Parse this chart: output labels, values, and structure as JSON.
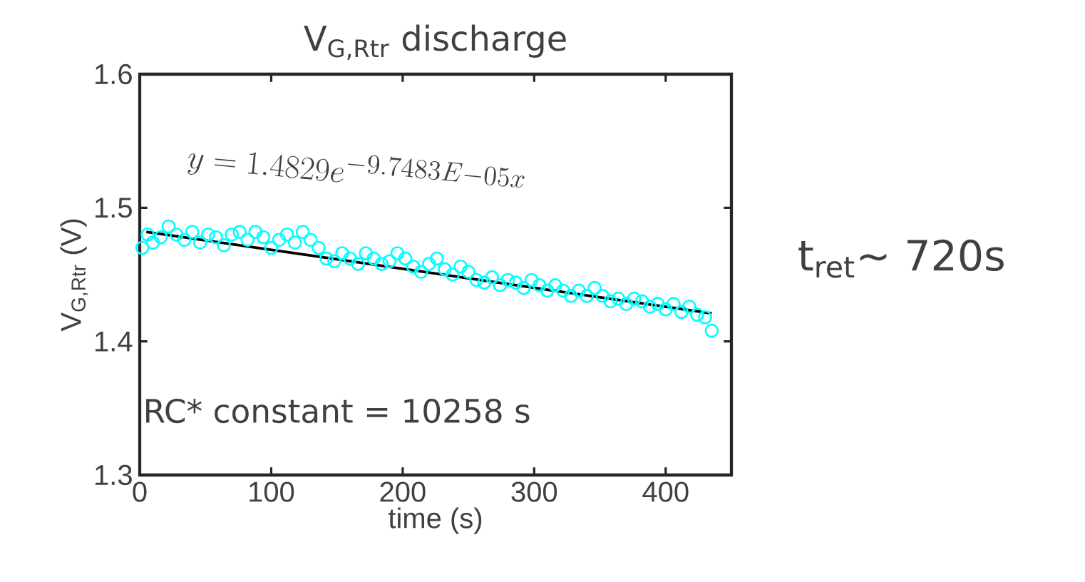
{
  "chart_data": {
    "type": "scatter",
    "title": "V$_{G,Rtr}$ discharge",
    "xlabel": "time (s)",
    "ylabel": "V$_{G,Rtr}$ (V)",
    "xlim": [
      0,
      450
    ],
    "ylim": [
      1.3,
      1.6
    ],
    "xticks": [
      0,
      100,
      200,
      300,
      400
    ],
    "yticks": [
      1.3,
      1.4,
      1.5,
      1.6
    ],
    "annotations": [
      "y = 1.4829e^{-9.7483E-05x}",
      "RC* constant = 10258 s",
      "t$_{ret}$~ 720s"
    ],
    "series": [
      {
        "color": "#00ffff",
        "marker": "circle",
        "x": [
          2,
          6,
          10,
          16,
          22,
          28,
          34,
          40,
          46,
          52,
          58,
          64,
          70,
          76,
          82,
          88,
          94,
          100,
          106,
          112,
          118,
          124,
          130,
          136,
          142,
          148,
          154,
          160,
          166,
          172,
          178,
          184,
          190,
          196,
          202,
          208,
          214,
          220,
          226,
          232,
          238,
          244,
          250,
          256,
          262,
          268,
          274,
          280,
          286,
          292,
          298,
          304,
          310,
          316,
          322,
          328,
          334,
          340,
          346,
          352,
          358,
          364,
          370,
          376,
          382,
          388,
          394,
          400,
          406,
          412,
          418,
          424,
          430,
          435
        ],
        "values": [
          1.47,
          1.48,
          1.474,
          1.478,
          1.486,
          1.48,
          1.476,
          1.482,
          1.474,
          1.48,
          1.478,
          1.472,
          1.48,
          1.482,
          1.476,
          1.482,
          1.478,
          1.47,
          1.476,
          1.48,
          1.474,
          1.482,
          1.476,
          1.47,
          1.462,
          1.46,
          1.466,
          1.462,
          1.458,
          1.466,
          1.462,
          1.458,
          1.46,
          1.466,
          1.462,
          1.456,
          1.452,
          1.458,
          1.462,
          1.454,
          1.45,
          1.456,
          1.452,
          1.446,
          1.444,
          1.448,
          1.442,
          1.446,
          1.444,
          1.44,
          1.446,
          1.442,
          1.438,
          1.442,
          1.438,
          1.434,
          1.438,
          1.434,
          1.44,
          1.434,
          1.43,
          1.432,
          1.428,
          1.432,
          1.43,
          1.426,
          1.428,
          1.424,
          1.428,
          1.422,
          1.426,
          1.42,
          1.418,
          1.408
        ]
      },
      {
        "type": "line",
        "color": "#000000",
        "x": [
          5,
          435
        ],
        "values": [
          1.482,
          1.421
        ]
      }
    ]
  }
}
